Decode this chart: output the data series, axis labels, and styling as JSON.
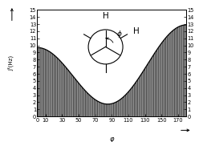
{
  "xlim": [
    0,
    180
  ],
  "ylim": [
    0,
    15
  ],
  "xticks": [
    0,
    10,
    30,
    50,
    70,
    90,
    110,
    130,
    150,
    170
  ],
  "yticks": [
    0,
    1,
    2,
    3,
    4,
    5,
    6,
    7,
    8,
    9,
    10,
    11,
    12,
    13,
    14,
    15
  ],
  "karplus_A": 9.5,
  "karplus_B": -1.6,
  "karplus_C": 1.8,
  "hatch_color": "#444444",
  "curve_color": "#000000",
  "bg_color": "#ffffff",
  "tick_fontsize": 4.8,
  "xlabel": "φ",
  "ylabel": "J³(Hz)"
}
